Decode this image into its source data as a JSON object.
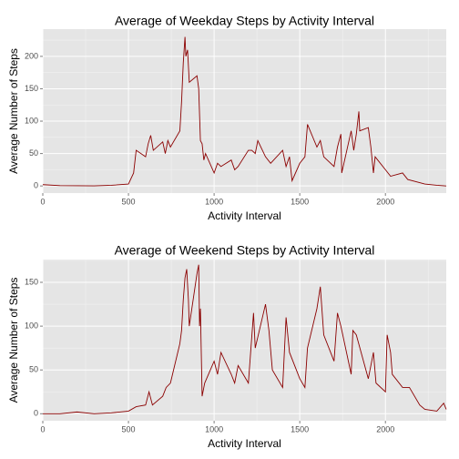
{
  "chart_data": [
    {
      "type": "line",
      "title": "Average of Weekday Steps by Activity Interval",
      "xlabel": "Activity Interval",
      "ylabel": "Average Number of Steps",
      "x": [
        0,
        100,
        200,
        300,
        400,
        500,
        530,
        545,
        600,
        615,
        630,
        645,
        700,
        715,
        730,
        745,
        800,
        810,
        820,
        830,
        835,
        845,
        855,
        900,
        910,
        920,
        930,
        940,
        950,
        1000,
        1020,
        1040,
        1100,
        1120,
        1140,
        1200,
        1220,
        1240,
        1255,
        1300,
        1330,
        1400,
        1420,
        1440,
        1455,
        1500,
        1530,
        1545,
        1600,
        1620,
        1640,
        1700,
        1720,
        1740,
        1745,
        1800,
        1815,
        1830,
        1845,
        1850,
        1900,
        1915,
        1930,
        1940,
        2000,
        2030,
        2100,
        2130,
        2200,
        2230,
        2300,
        2355
      ],
      "values": [
        2,
        0.5,
        0.3,
        0.2,
        1,
        3,
        20,
        55,
        45,
        65,
        78,
        55,
        68,
        50,
        70,
        60,
        85,
        130,
        190,
        230,
        200,
        210,
        160,
        170,
        150,
        70,
        65,
        40,
        50,
        20,
        35,
        30,
        40,
        25,
        30,
        55,
        55,
        50,
        70,
        45,
        35,
        55,
        30,
        45,
        8,
        35,
        45,
        95,
        60,
        70,
        45,
        30,
        60,
        80,
        20,
        85,
        55,
        80,
        115,
        85,
        90,
        60,
        20,
        45,
        25,
        15,
        20,
        10,
        5,
        3,
        1,
        0
      ],
      "color": "#8b0000",
      "xlim": [
        0,
        2355
      ],
      "ylim": [
        -11,
        242
      ],
      "xticks": [
        0,
        500,
        1000,
        1500,
        2000
      ],
      "yticks": [
        0,
        50,
        100,
        150,
        200
      ],
      "grid": true
    },
    {
      "type": "line",
      "title": "Average of Weekend Steps by Activity Interval",
      "xlabel": "Activity Interval",
      "ylabel": "Average Number of Steps",
      "x": [
        0,
        100,
        200,
        300,
        400,
        500,
        545,
        600,
        620,
        640,
        700,
        720,
        745,
        800,
        810,
        820,
        830,
        840,
        850,
        855,
        900,
        910,
        915,
        920,
        930,
        945,
        1000,
        1020,
        1040,
        1100,
        1120,
        1140,
        1200,
        1215,
        1230,
        1240,
        1300,
        1320,
        1340,
        1400,
        1420,
        1440,
        1500,
        1530,
        1545,
        1600,
        1620,
        1640,
        1700,
        1720,
        1740,
        1800,
        1810,
        1830,
        1900,
        1930,
        1945,
        2000,
        2010,
        2030,
        2040,
        2100,
        2140,
        2200,
        2230,
        2300,
        2340,
        2355
      ],
      "values": [
        0,
        0,
        2,
        0,
        1,
        3,
        8,
        10,
        25,
        10,
        20,
        30,
        35,
        80,
        95,
        130,
        155,
        165,
        130,
        100,
        160,
        170,
        100,
        120,
        20,
        35,
        60,
        45,
        70,
        45,
        35,
        55,
        35,
        75,
        115,
        75,
        125,
        95,
        50,
        30,
        110,
        70,
        40,
        30,
        75,
        120,
        145,
        90,
        60,
        115,
        100,
        45,
        95,
        90,
        40,
        70,
        35,
        25,
        90,
        70,
        45,
        30,
        30,
        10,
        5,
        3,
        12,
        5
      ],
      "color": "#8b0000",
      "xlim": [
        0,
        2355
      ],
      "ylim": [
        -8,
        176
      ],
      "xticks": [
        0,
        500,
        1000,
        1500,
        2000
      ],
      "yticks": [
        0,
        50,
        100,
        150
      ],
      "grid": true
    }
  ]
}
